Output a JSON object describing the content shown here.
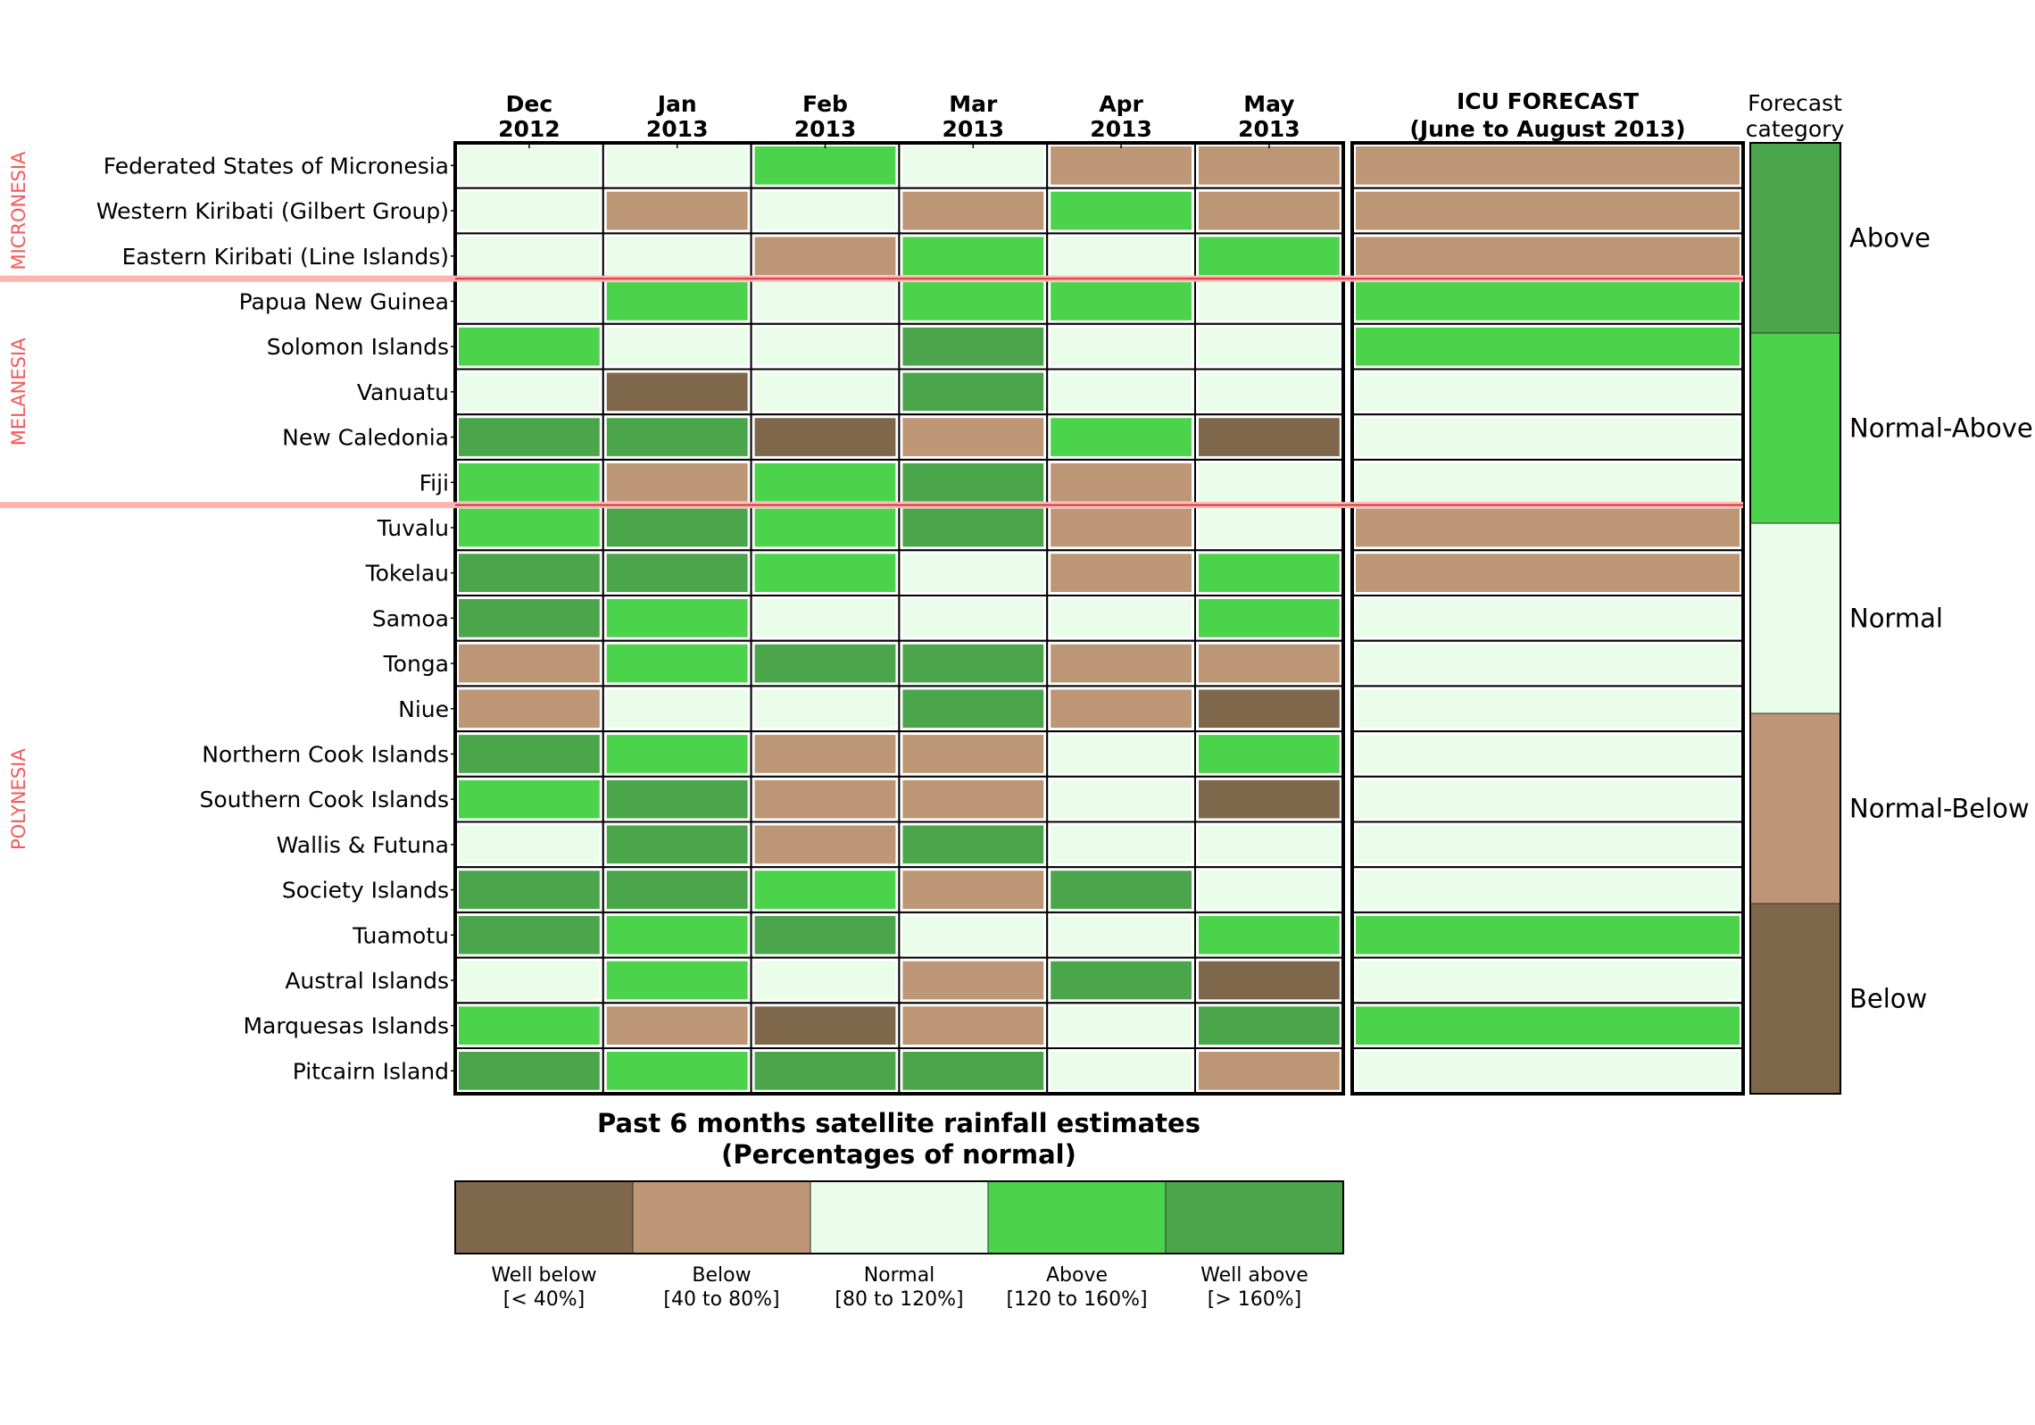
{
  "chart_data": {
    "type": "heatmap",
    "months": [
      {
        "line1": "Dec",
        "line2": "2012"
      },
      {
        "line1": "Jan",
        "line2": "2013"
      },
      {
        "line1": "Feb",
        "line2": "2013"
      },
      {
        "line1": "Mar",
        "line2": "2013"
      },
      {
        "line1": "Apr",
        "line2": "2013"
      },
      {
        "line1": "May",
        "line2": "2013"
      }
    ],
    "forecast_title_line1": "ICU FORECAST",
    "forecast_title_line2": "(June to August 2013)",
    "forecast_scale_title_line1": "Forecast",
    "forecast_scale_title_line2": "category",
    "regions": [
      {
        "name": "MICRONESIA",
        "first_row": 0,
        "last_row": 2
      },
      {
        "name": "MELANESIA",
        "first_row": 3,
        "last_row": 7
      },
      {
        "name": "POLYNESIA",
        "first_row": 8,
        "last_row": 20
      }
    ],
    "regions_color": "#f25a5a",
    "region_divider_color": "#ffb3b3",
    "region_dividers_after_rows": [
      2,
      7
    ],
    "rows": [
      {
        "island": "Federated States of Micronesia",
        "values": [
          2,
          2,
          3,
          2,
          1,
          1
        ],
        "forecast": 1
      },
      {
        "island": "Western Kiribati (Gilbert Group)",
        "values": [
          2,
          1,
          2,
          1,
          3,
          1
        ],
        "forecast": 1
      },
      {
        "island": "Eastern Kiribati (Line Islands)",
        "values": [
          2,
          2,
          1,
          3,
          2,
          3
        ],
        "forecast": 1
      },
      {
        "island": "Papua New Guinea",
        "values": [
          2,
          3,
          2,
          3,
          3,
          2
        ],
        "forecast": 3
      },
      {
        "island": "Solomon Islands",
        "values": [
          3,
          2,
          2,
          4,
          2,
          2
        ],
        "forecast": 3
      },
      {
        "island": "Vanuatu",
        "values": [
          2,
          0,
          2,
          4,
          2,
          2
        ],
        "forecast": 2
      },
      {
        "island": "New Caledonia",
        "values": [
          4,
          4,
          0,
          1,
          3,
          0
        ],
        "forecast": 2
      },
      {
        "island": "Fiji",
        "values": [
          3,
          1,
          3,
          4,
          1,
          2
        ],
        "forecast": 2
      },
      {
        "island": "Tuvalu",
        "values": [
          3,
          4,
          3,
          4,
          1,
          2
        ],
        "forecast": 1
      },
      {
        "island": "Tokelau",
        "values": [
          4,
          4,
          3,
          2,
          1,
          3
        ],
        "forecast": 1
      },
      {
        "island": "Samoa",
        "values": [
          4,
          3,
          2,
          2,
          2,
          3
        ],
        "forecast": 2
      },
      {
        "island": "Tonga",
        "values": [
          1,
          3,
          4,
          4,
          1,
          1
        ],
        "forecast": 2
      },
      {
        "island": "Niue",
        "values": [
          1,
          2,
          2,
          4,
          1,
          0
        ],
        "forecast": 2
      },
      {
        "island": "Northern Cook Islands",
        "values": [
          4,
          3,
          1,
          1,
          2,
          3
        ],
        "forecast": 2
      },
      {
        "island": "Southern Cook Islands",
        "values": [
          3,
          4,
          1,
          1,
          2,
          0
        ],
        "forecast": 2
      },
      {
        "island": "Wallis & Futuna",
        "values": [
          2,
          4,
          1,
          4,
          2,
          2
        ],
        "forecast": 2
      },
      {
        "island": "Society Islands",
        "values": [
          4,
          4,
          3,
          1,
          4,
          2
        ],
        "forecast": 2
      },
      {
        "island": "Tuamotu",
        "values": [
          4,
          3,
          4,
          2,
          2,
          3
        ],
        "forecast": 3
      },
      {
        "island": "Austral Islands",
        "values": [
          2,
          3,
          2,
          1,
          4,
          0
        ],
        "forecast": 2
      },
      {
        "island": "Marquesas Islands",
        "values": [
          3,
          1,
          0,
          1,
          2,
          4
        ],
        "forecast": 3
      },
      {
        "island": "Pitcairn Island",
        "values": [
          4,
          3,
          4,
          4,
          2,
          1
        ],
        "forecast": 2
      }
    ],
    "rainfall_categories": [
      {
        "label_line1": "Well below",
        "label_line2": "[< 40%]",
        "color": "#7f674c"
      },
      {
        "label_line1": "Below",
        "label_line2": "[40 to 80%]",
        "color": "#bc9675"
      },
      {
        "label_line1": "Normal",
        "label_line2": "[80 to 120%]",
        "color": "#eafcea"
      },
      {
        "label_line1": "Above",
        "label_line2": "[120 to 160%]",
        "color": "#4bd34b"
      },
      {
        "label_line1": "Well above",
        "label_line2": "[> 160%]",
        "color": "#4ba64b"
      }
    ],
    "forecast_categories": [
      {
        "label": "Below",
        "color": "#7f674c"
      },
      {
        "label": "Normal-Below",
        "color": "#bc9675"
      },
      {
        "label": "Normal",
        "color": "#eafcea"
      },
      {
        "label": "Normal-Above",
        "color": "#4bd34b"
      },
      {
        "label": "Above",
        "color": "#4ba64b"
      }
    ],
    "rainfall_legend_title_line1": "Past 6 months satellite rainfall estimates",
    "rainfall_legend_title_line2": "(Percentages of normal)"
  }
}
